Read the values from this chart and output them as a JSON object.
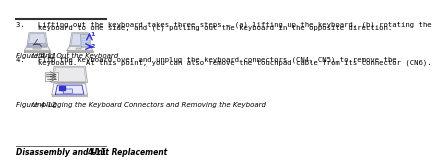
{
  "page_bg": "#ffffff",
  "text_color": "#000000",
  "blue_color": "#3333cc",
  "light_blue_fill": "#c8d4f0",
  "gray_line": "#999999",
  "gray_fill": "#eeeeee",
  "dark_line": "#444444",
  "step3_line1": "3.   Lifting out the keyboard takes three steps — (a) lifting up the keyboard, (b) rotating the",
  "step3_line2": "     keyboard to one side, and (c) pulling out the keyboard in the opposite direction.",
  "fig411_caption_left": "Figure 4-11",
  "fig411_caption_right": "Lifting Out the Keyboard",
  "step4_line1": "4.   Flip the keyboard over and unplug the keyboard connectors (CN4, CN5) to remove the",
  "step4_line2": "     keyboard.  At this point, you can also remove the touchpad cable from its connector (CN6).",
  "fig412_caption_left": "Figure 4-12",
  "fig412_caption_right": "Unplugging the Keyboard Connectors and Removing the Keyboard",
  "footer_left": "Disassembly and Unit Replacement",
  "footer_right": "4-11",
  "body_fontsize": 5.2,
  "caption_fontsize": 5.0,
  "footer_fontsize": 5.5
}
